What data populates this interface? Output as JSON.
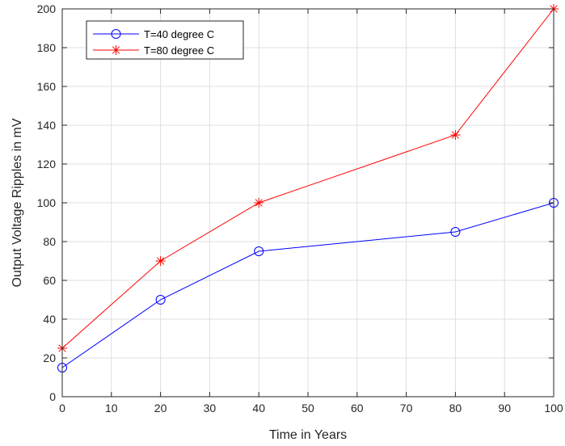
{
  "chart_data": {
    "type": "line",
    "title": "",
    "xlabel": "Time in Years",
    "ylabel": "Output Voltage Ripples in mV",
    "xlim": [
      0,
      100
    ],
    "ylim": [
      0,
      200
    ],
    "xticks": [
      0,
      10,
      20,
      30,
      40,
      50,
      60,
      70,
      80,
      90,
      100
    ],
    "yticks": [
      0,
      20,
      40,
      60,
      80,
      100,
      120,
      140,
      160,
      180,
      200
    ],
    "grid": true,
    "legend_position": "top-left",
    "series": [
      {
        "name": "T=40 degree C",
        "color": "#0000ff",
        "marker": "circle",
        "x": [
          0,
          20,
          40,
          80,
          100
        ],
        "y": [
          15,
          50,
          75,
          85,
          100
        ]
      },
      {
        "name": "T=80 degree C",
        "color": "#ff0000",
        "marker": "asterisk",
        "x": [
          0,
          20,
          40,
          80,
          100
        ],
        "y": [
          25,
          70,
          100,
          135,
          200
        ]
      }
    ]
  }
}
